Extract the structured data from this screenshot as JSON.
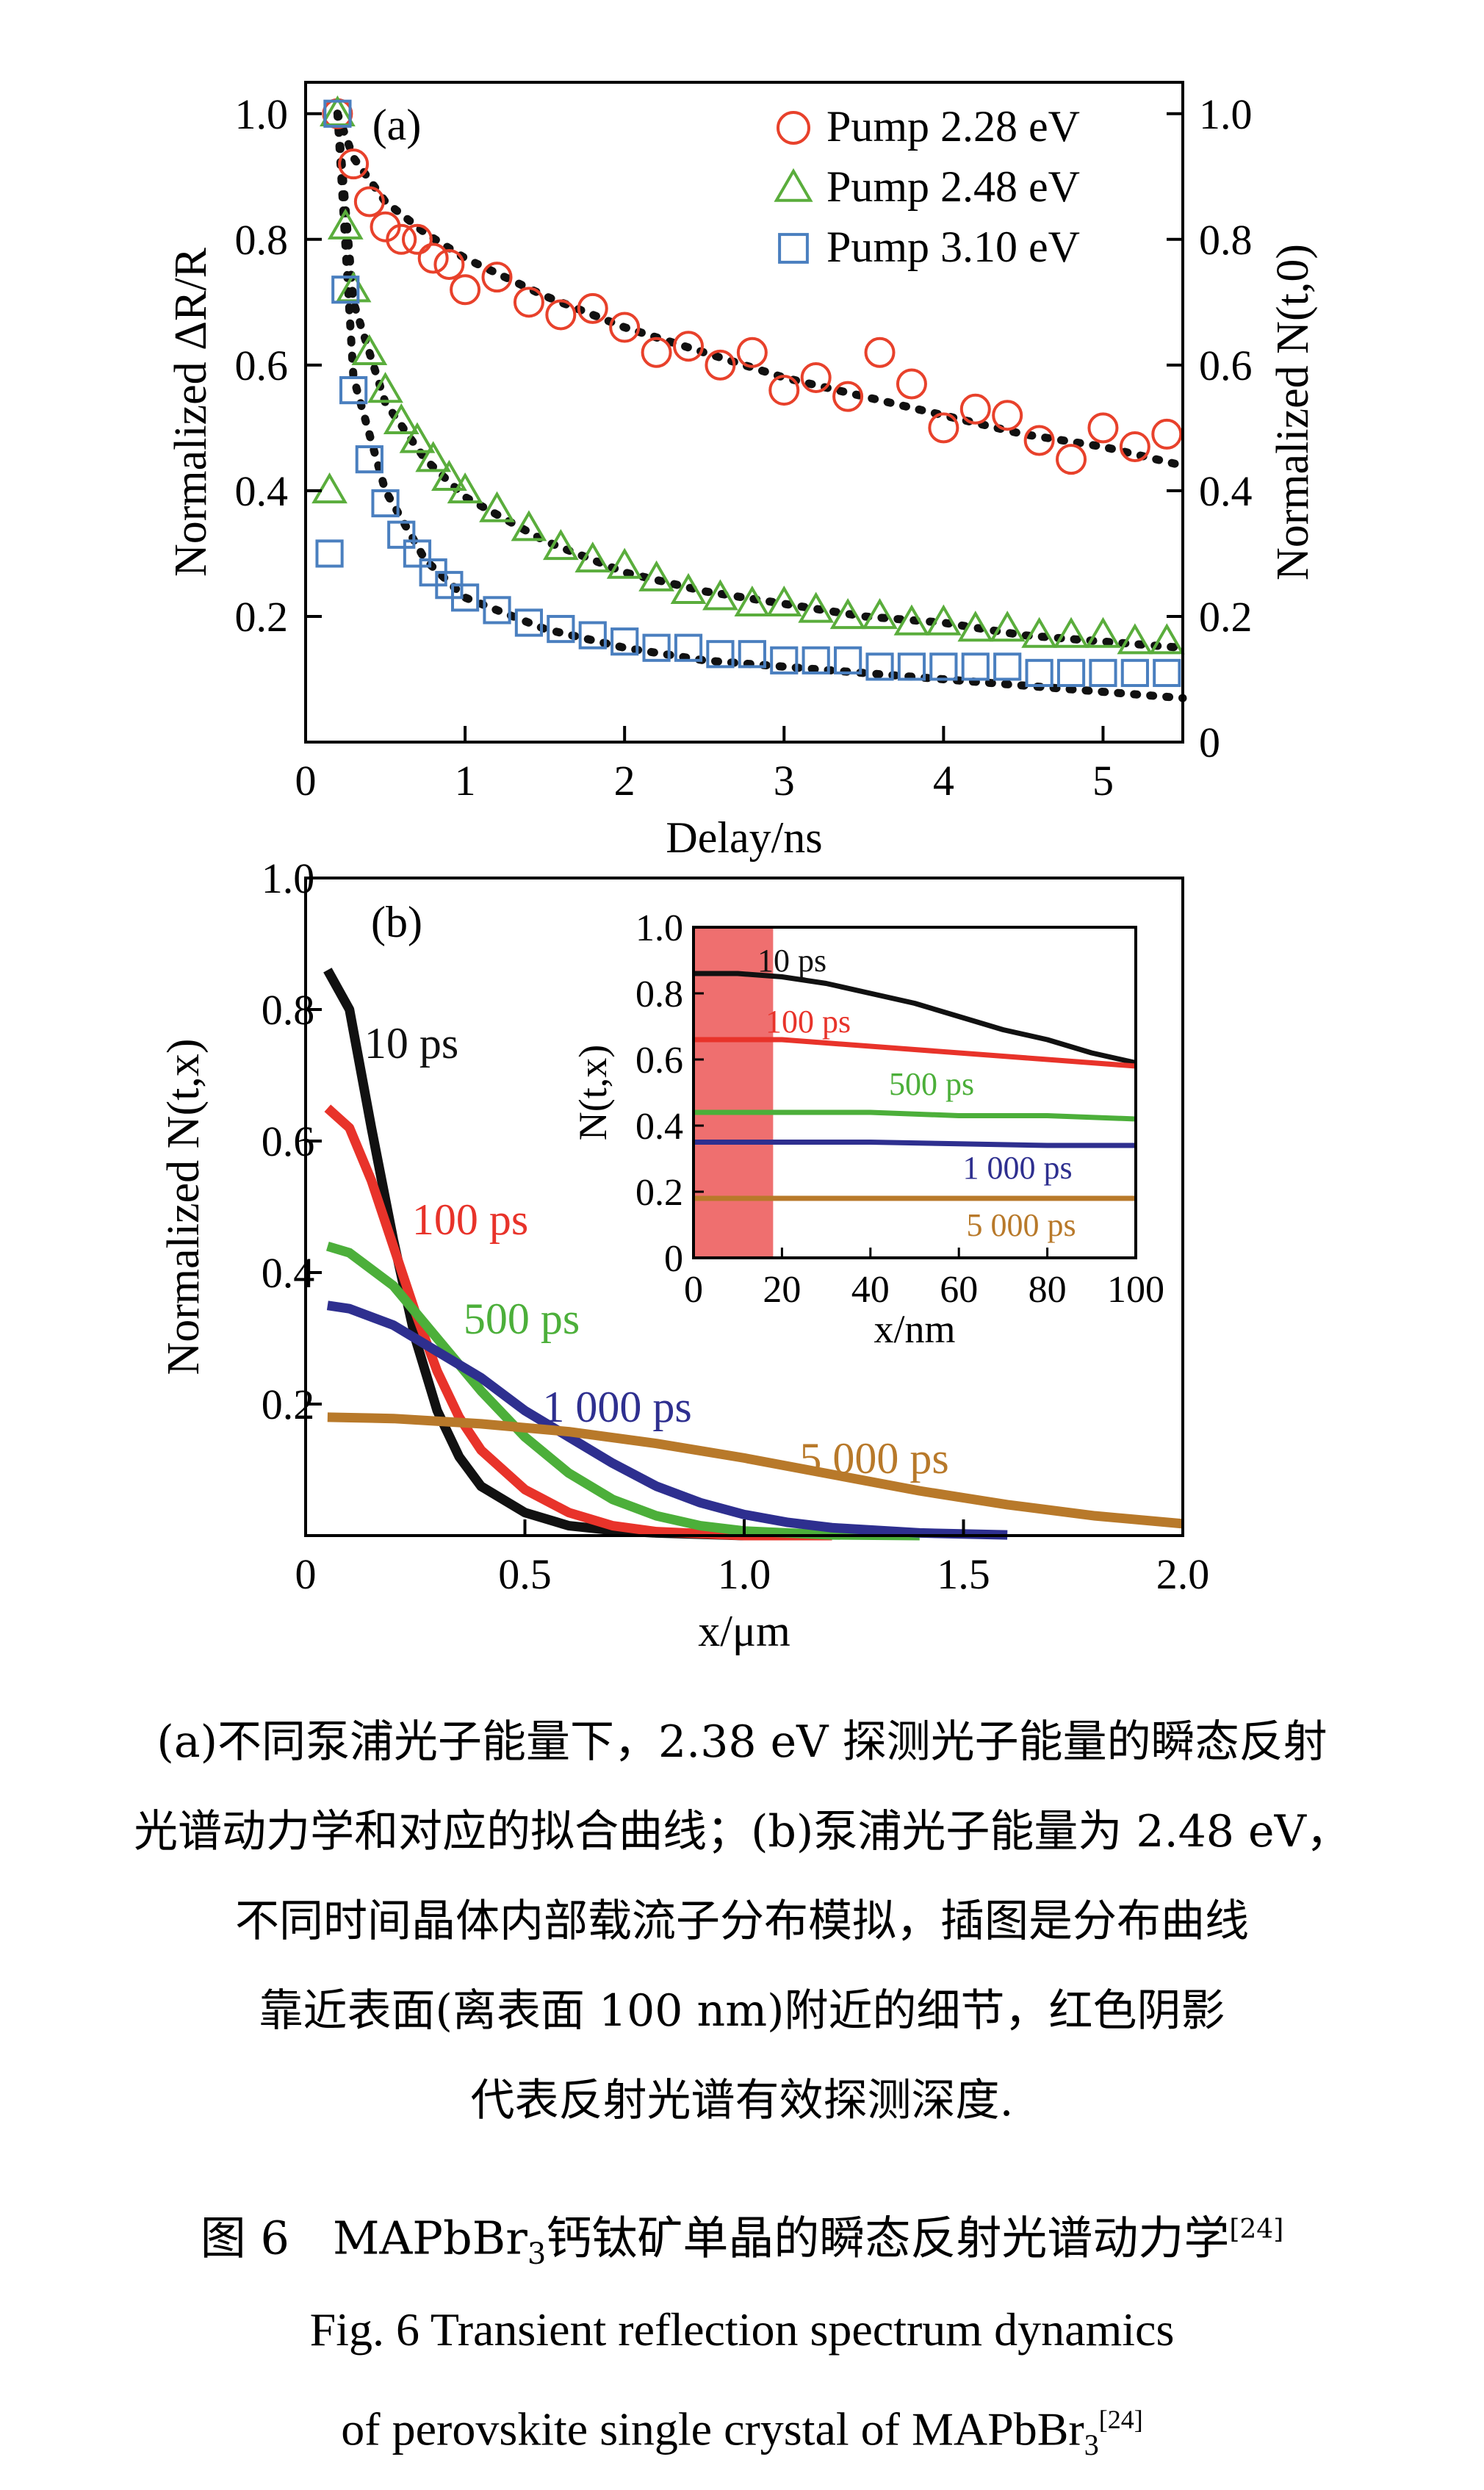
{
  "chart_data": [
    {
      "type": "scatter",
      "panel_label": "(a)",
      "xlabel": "Delay/ns",
      "ylabel_left": "Normalized ΔR/R",
      "ylabel_right": "Normalized N(t,0)",
      "xlim": [
        0,
        5.5
      ],
      "ylim": [
        0,
        1.05
      ],
      "x_ticks": [
        "0",
        "1",
        "2",
        "3",
        "4",
        "5"
      ],
      "y_ticks_left": [
        "0.2",
        "0.4",
        "0.6",
        "0.8",
        "1.0"
      ],
      "y_ticks_right": [
        "0",
        "0.2",
        "0.4",
        "0.6",
        "0.8",
        "1.0"
      ],
      "legend_position": "top-right",
      "colors": {
        "Pump 2.28 eV": "#e8412b",
        "Pump 2.48 eV": "#5aad3c",
        "Pump 3.10 eV": "#4a7fbf",
        "fit": "#111111"
      },
      "series": [
        {
          "name": "Pump 2.28 eV",
          "marker": "circle",
          "x": [
            0.2,
            0.3,
            0.4,
            0.5,
            0.6,
            0.7,
            0.8,
            0.9,
            1.0,
            1.2,
            1.4,
            1.6,
            1.8,
            2.0,
            2.2,
            2.4,
            2.6,
            2.8,
            3.0,
            3.2,
            3.4,
            3.6,
            3.8,
            4.0,
            4.2,
            4.4,
            4.6,
            4.8,
            5.0,
            5.2,
            5.4
          ],
          "y": [
            1.0,
            0.92,
            0.86,
            0.82,
            0.8,
            0.8,
            0.77,
            0.76,
            0.72,
            0.74,
            0.7,
            0.68,
            0.69,
            0.66,
            0.62,
            0.63,
            0.6,
            0.62,
            0.56,
            0.58,
            0.55,
            0.62,
            0.57,
            0.5,
            0.53,
            0.52,
            0.48,
            0.45,
            0.5,
            0.47,
            0.49
          ]
        },
        {
          "name": "Pump 2.48 eV",
          "marker": "triangle",
          "x": [
            0.15,
            0.2,
            0.25,
            0.3,
            0.4,
            0.5,
            0.6,
            0.7,
            0.8,
            0.9,
            1.0,
            1.2,
            1.4,
            1.6,
            1.8,
            2.0,
            2.2,
            2.4,
            2.6,
            2.8,
            3.0,
            3.2,
            3.4,
            3.6,
            3.8,
            4.0,
            4.2,
            4.4,
            4.6,
            4.8,
            5.0,
            5.2,
            5.4
          ],
          "y": [
            0.4,
            1.0,
            0.82,
            0.72,
            0.62,
            0.56,
            0.51,
            0.48,
            0.45,
            0.42,
            0.4,
            0.37,
            0.34,
            0.31,
            0.29,
            0.28,
            0.26,
            0.24,
            0.23,
            0.22,
            0.22,
            0.21,
            0.2,
            0.2,
            0.19,
            0.19,
            0.18,
            0.18,
            0.17,
            0.17,
            0.17,
            0.16,
            0.16
          ]
        },
        {
          "name": "Pump 3.10 eV",
          "marker": "square",
          "x": [
            0.15,
            0.2,
            0.25,
            0.3,
            0.4,
            0.5,
            0.6,
            0.7,
            0.8,
            0.9,
            1.0,
            1.2,
            1.4,
            1.6,
            1.8,
            2.0,
            2.2,
            2.4,
            2.6,
            2.8,
            3.0,
            3.2,
            3.4,
            3.6,
            3.8,
            4.0,
            4.2,
            4.4,
            4.6,
            4.8,
            5.0,
            5.2,
            5.4
          ],
          "y": [
            0.3,
            1.0,
            0.72,
            0.56,
            0.45,
            0.38,
            0.33,
            0.3,
            0.27,
            0.25,
            0.23,
            0.21,
            0.19,
            0.18,
            0.17,
            0.16,
            0.15,
            0.15,
            0.14,
            0.14,
            0.13,
            0.13,
            0.13,
            0.12,
            0.12,
            0.12,
            0.12,
            0.12,
            0.11,
            0.11,
            0.11,
            0.11,
            0.11
          ]
        }
      ],
      "fits": [
        {
          "x": [
            0.2,
            0.3,
            0.5,
            0.75,
            1.0,
            1.5,
            2.0,
            2.5,
            3.0,
            3.5,
            4.0,
            4.5,
            5.0,
            5.5
          ],
          "y": [
            1.0,
            0.93,
            0.86,
            0.81,
            0.77,
            0.71,
            0.66,
            0.62,
            0.58,
            0.55,
            0.52,
            0.49,
            0.47,
            0.44
          ]
        },
        {
          "x": [
            0.2,
            0.3,
            0.5,
            0.75,
            1.0,
            1.5,
            2.0,
            2.5,
            3.0,
            3.5,
            4.0,
            4.5,
            5.0,
            5.5
          ],
          "y": [
            1.0,
            0.7,
            0.54,
            0.45,
            0.39,
            0.32,
            0.27,
            0.24,
            0.22,
            0.2,
            0.19,
            0.17,
            0.16,
            0.15
          ]
        },
        {
          "x": [
            0.2,
            0.3,
            0.5,
            0.75,
            1.0,
            1.5,
            2.0,
            2.5,
            3.0,
            3.5,
            4.0,
            4.5,
            5.0,
            5.5
          ],
          "y": [
            1.0,
            0.58,
            0.4,
            0.29,
            0.23,
            0.18,
            0.15,
            0.13,
            0.12,
            0.11,
            0.1,
            0.09,
            0.08,
            0.07
          ]
        }
      ]
    },
    {
      "type": "line",
      "panel_label": "(b)",
      "xlabel": "x/μm",
      "ylabel": "Normalized N(t,x)",
      "xlim": [
        0,
        2.0
      ],
      "ylim": [
        0,
        1.0
      ],
      "x_ticks": [
        "0",
        "0.5",
        "1.0",
        "1.5",
        "2.0"
      ],
      "y_ticks": [
        "0.2",
        "0.4",
        "0.6",
        "0.8",
        "1.0"
      ],
      "series": [
        {
          "name": "10 ps",
          "color": "#111111",
          "x": [
            0.05,
            0.1,
            0.15,
            0.2,
            0.25,
            0.3,
            0.35,
            0.4,
            0.5,
            0.6,
            0.7,
            0.8,
            1.0,
            1.2
          ],
          "y": [
            0.86,
            0.8,
            0.62,
            0.45,
            0.3,
            0.19,
            0.12,
            0.075,
            0.035,
            0.015,
            0.008,
            0.004,
            0.0,
            0.0
          ]
        },
        {
          "name": "100 ps",
          "color": "#e8332a",
          "x": [
            0.05,
            0.1,
            0.15,
            0.2,
            0.25,
            0.3,
            0.35,
            0.4,
            0.5,
            0.6,
            0.7,
            0.8,
            1.0,
            1.2
          ],
          "y": [
            0.65,
            0.62,
            0.54,
            0.44,
            0.34,
            0.25,
            0.18,
            0.13,
            0.07,
            0.035,
            0.015,
            0.006,
            0.0,
            0.0
          ]
        },
        {
          "name": "500 ps",
          "color": "#4caf3a",
          "x": [
            0.05,
            0.1,
            0.2,
            0.3,
            0.4,
            0.5,
            0.6,
            0.7,
            0.8,
            0.9,
            1.0,
            1.2,
            1.4
          ],
          "y": [
            0.44,
            0.43,
            0.38,
            0.3,
            0.22,
            0.15,
            0.095,
            0.055,
            0.03,
            0.015,
            0.007,
            0.001,
            0.0
          ]
        },
        {
          "name": "1 000 ps",
          "color": "#2e2f8f",
          "x": [
            0.05,
            0.1,
            0.2,
            0.3,
            0.4,
            0.5,
            0.6,
            0.7,
            0.8,
            0.9,
            1.0,
            1.1,
            1.2,
            1.4,
            1.6
          ],
          "y": [
            0.35,
            0.345,
            0.32,
            0.28,
            0.24,
            0.19,
            0.15,
            0.11,
            0.075,
            0.05,
            0.032,
            0.02,
            0.012,
            0.004,
            0.001
          ]
        },
        {
          "name": "5 000 ps",
          "color": "#b8792a",
          "x": [
            0.05,
            0.2,
            0.4,
            0.6,
            0.8,
            1.0,
            1.2,
            1.4,
            1.6,
            1.8,
            2.0
          ],
          "y": [
            0.18,
            0.178,
            0.17,
            0.158,
            0.14,
            0.118,
            0.093,
            0.068,
            0.047,
            0.03,
            0.018
          ]
        }
      ],
      "inset": {
        "xlabel": "x/nm",
        "ylabel": "N(t,x)",
        "xlim": [
          0,
          100
        ],
        "ylim": [
          0,
          1.0
        ],
        "x_ticks": [
          "0",
          "20",
          "40",
          "60",
          "80",
          "100"
        ],
        "y_ticks": [
          "0",
          "0.2",
          "0.4",
          "0.6",
          "0.8",
          "1.0"
        ],
        "shaded_region_nm": [
          0,
          18
        ],
        "shade_color": "#ef6f6f",
        "series": [
          {
            "name": "10 ps",
            "color": "#111111",
            "x": [
              0,
              10,
              20,
              30,
              40,
              50,
              60,
              70,
              80,
              90,
              100
            ],
            "y": [
              0.86,
              0.86,
              0.85,
              0.83,
              0.8,
              0.77,
              0.73,
              0.69,
              0.66,
              0.62,
              0.59
            ]
          },
          {
            "name": "100 ps",
            "color": "#e8332a",
            "x": [
              0,
              10,
              20,
              30,
              40,
              50,
              60,
              70,
              80,
              90,
              100
            ],
            "y": [
              0.66,
              0.66,
              0.66,
              0.65,
              0.64,
              0.63,
              0.62,
              0.61,
              0.6,
              0.59,
              0.58
            ]
          },
          {
            "name": "500 ps",
            "color": "#4caf3a",
            "x": [
              0,
              20,
              40,
              60,
              80,
              100
            ],
            "y": [
              0.44,
              0.44,
              0.44,
              0.43,
              0.43,
              0.42
            ]
          },
          {
            "name": "1 000 ps",
            "color": "#2e2f8f",
            "x": [
              0,
              20,
              40,
              60,
              80,
              100
            ],
            "y": [
              0.35,
              0.35,
              0.35,
              0.345,
              0.34,
              0.34
            ]
          },
          {
            "name": "5 000 ps",
            "color": "#b8792a",
            "x": [
              0,
              20,
              40,
              60,
              80,
              100
            ],
            "y": [
              0.18,
              0.18,
              0.18,
              0.18,
              0.18,
              0.18
            ]
          }
        ]
      }
    }
  ],
  "caption": {
    "description_lines": [
      "(a)不同泵浦光子能量下，2.38 eV 探测光子能量的瞬态反射",
      "光谱动力学和对应的拟合曲线；(b)泵浦光子能量为 2.48 eV，",
      "不同时间晶体内部载流子分布模拟，插图是分布曲线",
      "靠近表面(离表面 100 nm)附近的细节，红色阴影",
      "代表反射光谱有效探测深度."
    ],
    "figure_number_cn": "图 6",
    "material_main": "MAPbBr",
    "material_sub": "3",
    "title_cn_rest": "钙钛矿单晶的瞬态反射光谱动力学",
    "ref": "[24]",
    "title_en_line1": "Fig. 6   Transient reflection spectrum dynamics",
    "title_en_line2": "of perovskite single crystal of MAPbBr",
    "title_en_sub": "3"
  }
}
